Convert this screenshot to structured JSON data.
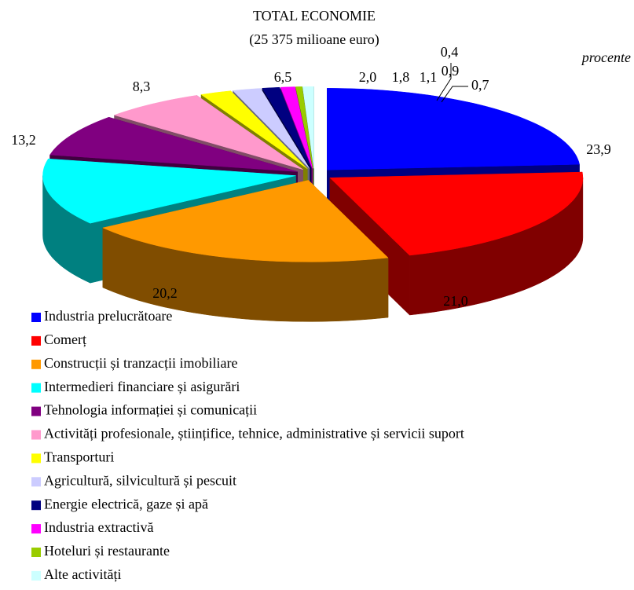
{
  "chart_data": {
    "type": "pie3d",
    "title": "TOTAL ECONOMIE",
    "subtitle": "(25 375 milioane euro)",
    "unit_label": "procente",
    "categories": [
      "Industria prelucrătoare",
      "Comerț",
      "Construcții și tranzacții imobiliare",
      "Intermedieri financiare și asigurări",
      "Tehnologia informației și comunicații",
      "Activități profesionale, științifice, tehnice, administrative și servicii suport",
      "Transporturi",
      "Agricultură, silvicultură și pescuit",
      "Energie electrică, gaze și apă",
      "Industria extractivă",
      "Hoteluri și restaurante",
      "Alte activități"
    ],
    "values": [
      23.9,
      21.0,
      20.2,
      13.2,
      8.3,
      6.5,
      2.0,
      1.8,
      1.1,
      0.9,
      0.4,
      0.7
    ],
    "value_labels": [
      "23,9",
      "21,0",
      "20,2",
      "13,2",
      "8,3",
      "6,5",
      "2,0",
      "1,8",
      "1,1",
      "0,9",
      "0,4",
      "0,7"
    ],
    "colors": [
      "#0000ff",
      "#ff0000",
      "#ff9900",
      "#00ffff",
      "#800080",
      "#ff99cc",
      "#ffff00",
      "#ccccff",
      "#000080",
      "#ff00ff",
      "#99cc00",
      "#ccffff"
    ],
    "legend": "bottom-left"
  }
}
